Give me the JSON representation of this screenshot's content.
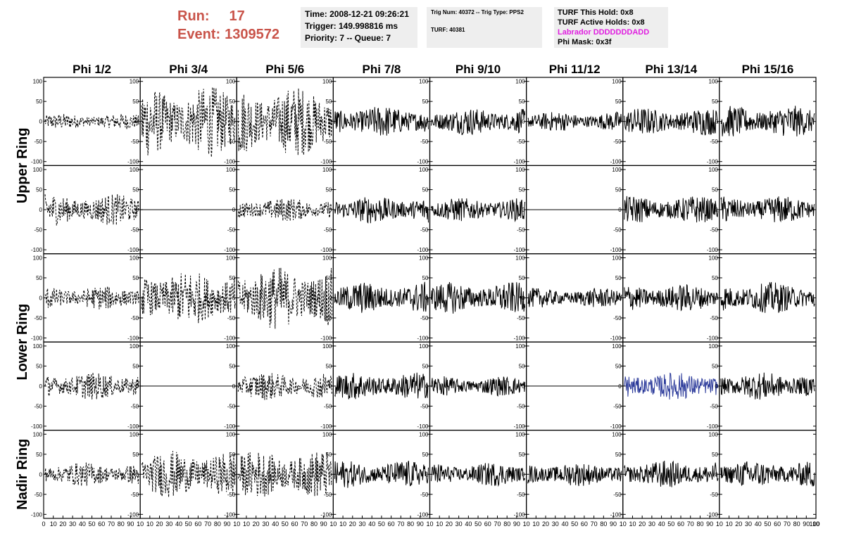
{
  "header": {
    "run_label": "Run:",
    "run_value": "17",
    "event_label": "Event:",
    "event_value": "1309572",
    "time": "Time: 2008-12-21 09:26:21",
    "trigger": "Trigger: 149.998816 ms",
    "priority": "Priority: 7 -- Queue: 7",
    "trig_num": "Trig Num: 40372 -- Trig Type: PPS2",
    "turf": "TURF: 40381",
    "turf_hold": "TURF This Hold: 0x8",
    "turf_active": "TURF Active Holds: 0x8",
    "labrador": "Labrador DDDDDDDADD",
    "phi_mask": "Phi Mask: 0x3f"
  },
  "colors": {
    "run_text": "#c9544a",
    "labrador_text": "#e01de0",
    "box_background": "#eeeeee",
    "highlight_trace": "#2b3a9a"
  },
  "chart_data": {
    "type": "line",
    "layout": "grid of waveform panels, 8 columns x 5 rows",
    "columns": [
      "Phi 1/2",
      "Phi 3/4",
      "Phi 5/6",
      "Phi 7/8",
      "Phi 9/10",
      "Phi 11/12",
      "Phi 13/14",
      "Phi 15/16"
    ],
    "ring_labels": [
      "Upper Ring",
      "Lower Ring",
      "Nadir Ring"
    ],
    "ylim": [
      -110,
      110
    ],
    "xlim": [
      0,
      100
    ],
    "y_ticks": [
      100,
      50,
      0,
      -50,
      -100
    ],
    "x_ticks": [
      0,
      10,
      20,
      30,
      40,
      50,
      60,
      70,
      80,
      90,
      100
    ],
    "x_tick_labels_per_panel": [
      "10",
      "20",
      "30",
      "40",
      "50",
      "60",
      "70",
      "80",
      "90",
      "10"
    ],
    "first_x_tick_label": "0",
    "last_x_tick_label": "100",
    "traces_approx_peak_amplitude": [
      [
        20,
        90,
        90,
        40,
        35,
        25,
        35,
        40
      ],
      [
        40,
        0,
        30,
        35,
        30,
        0,
        35,
        35
      ],
      [
        30,
        70,
        80,
        40,
        40,
        25,
        35,
        40
      ],
      [
        35,
        0,
        35,
        35,
        25,
        0,
        35,
        35
      ],
      [
        30,
        60,
        60,
        35,
        30,
        30,
        35,
        35
      ]
    ],
    "trace_styles": [
      [
        "dashed",
        "dashed",
        "dashed",
        "solid",
        "solid",
        "solid",
        "solid",
        "solid"
      ],
      [
        "dashed",
        "flat",
        "dashed",
        "solid",
        "solid",
        "flat",
        "solid",
        "solid"
      ],
      [
        "dashed",
        "dashed",
        "dashed",
        "solid",
        "solid",
        "solid",
        "solid",
        "solid"
      ],
      [
        "dashed",
        "flat",
        "dashed",
        "solid",
        "solid",
        "flat",
        "highlight",
        "solid"
      ],
      [
        "dashed",
        "dashed",
        "dashed",
        "solid",
        "solid",
        "solid",
        "solid",
        "solid"
      ]
    ]
  }
}
